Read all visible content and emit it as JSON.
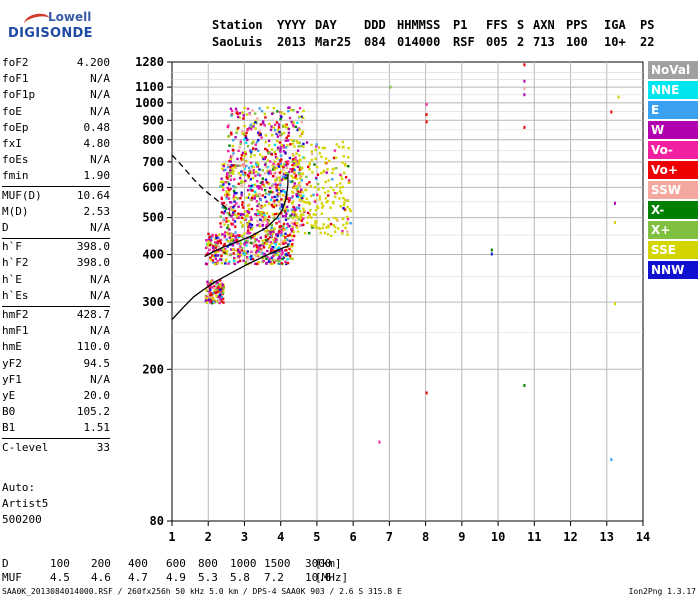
{
  "logo": {
    "line1": "Lowell",
    "line2": "DIGISONDE"
  },
  "header": {
    "row1": [
      {
        "key": "h_station",
        "text": "Station"
      },
      {
        "key": "h_yyyy",
        "text": "YYYY"
      },
      {
        "key": "h_day",
        "text": "DAY"
      },
      {
        "key": "h_ddd",
        "text": "DDD"
      },
      {
        "key": "h_hhmmss",
        "text": "HHMMSS"
      },
      {
        "key": "h_p1",
        "text": "P1"
      },
      {
        "key": "h_ffs",
        "text": "FFS"
      },
      {
        "key": "h_s",
        "text": "S"
      },
      {
        "key": "h_axn",
        "text": "AXN"
      },
      {
        "key": "h_pps",
        "text": "PPS"
      },
      {
        "key": "h_iga",
        "text": "IGA"
      },
      {
        "key": "h_ps",
        "text": "PS"
      }
    ],
    "row2": [
      {
        "key": "v_station",
        "text": "SaoLuis"
      },
      {
        "key": "v_yyyy",
        "text": "2013"
      },
      {
        "key": "v_day",
        "text": "Mar25"
      },
      {
        "key": "v_ddd",
        "text": "084"
      },
      {
        "key": "v_hhmmss",
        "text": "014000"
      },
      {
        "key": "v_p1",
        "text": "RSF"
      },
      {
        "key": "v_ffs",
        "text": "005"
      },
      {
        "key": "v_s",
        "text": "2"
      },
      {
        "key": "v_axn",
        "text": "713"
      },
      {
        "key": "v_pps",
        "text": "100"
      },
      {
        "key": "v_iga",
        "text": "10+"
      },
      {
        "key": "v_ps",
        "text": "22"
      }
    ]
  },
  "parameters": [
    {
      "name": "foF2",
      "value": "4.200"
    },
    {
      "name": "foF1",
      "value": "N/A"
    },
    {
      "name": "foF1p",
      "value": "N/A"
    },
    {
      "name": "foE",
      "value": "N/A"
    },
    {
      "name": "foEp",
      "value": "0.48"
    },
    {
      "name": "fxI",
      "value": "4.80"
    },
    {
      "name": "foEs",
      "value": "N/A"
    },
    {
      "name": "fmin",
      "value": "1.90"
    },
    {
      "name": "MUF(D)",
      "value": "10.64"
    },
    {
      "name": "M(D)",
      "value": "2.53"
    },
    {
      "name": "D",
      "value": "N/A"
    },
    {
      "name": "h`F",
      "value": "398.0"
    },
    {
      "name": "h`F2",
      "value": "398.0"
    },
    {
      "name": "h`E",
      "value": "N/A"
    },
    {
      "name": "h`Es",
      "value": "N/A"
    },
    {
      "name": "hmF2",
      "value": "428.7"
    },
    {
      "name": "hmF1",
      "value": "N/A"
    },
    {
      "name": "hmE",
      "value": "110.0"
    },
    {
      "name": "yF2",
      "value": "94.5"
    },
    {
      "name": "yF1",
      "value": "N/A"
    },
    {
      "name": "yE",
      "value": "20.0"
    },
    {
      "name": "B0",
      "value": "105.2"
    },
    {
      "name": "B1",
      "value": "1.51"
    },
    {
      "name": "C-level",
      "value": "33"
    }
  ],
  "auto": {
    "line1": "Auto:",
    "line2": "Artist5",
    "line3": "500200"
  },
  "bottom_table": {
    "row1_label": "D",
    "row1_values": [
      "100",
      "200",
      "400",
      "600",
      "800",
      "1000",
      "1500",
      "3000"
    ],
    "row1_unit": "[km]",
    "row2_label": "MUF",
    "row2_values": [
      "4.5",
      "4.6",
      "4.7",
      "4.9",
      "5.3",
      "5.8",
      "7.2",
      "10.6"
    ],
    "row2_unit": "[MHz]"
  },
  "footer": {
    "left": "SAA0K_2013084014000.RSF / 260fx256h 50 kHz 5.0 km / DPS-4 SAA0K 903 / 2.6 S 315.8 E",
    "right": "Ion2Png 1.3.17"
  },
  "legend": [
    {
      "label": "NoVal",
      "color": "#a0a0a0"
    },
    {
      "label": "NNE",
      "color": "#00e5ee"
    },
    {
      "label": "E",
      "color": "#3aa0f0"
    },
    {
      "label": "W",
      "color": "#b000b0"
    },
    {
      "label": "Vo-",
      "color": "#f020a0"
    },
    {
      "label": "Vo+",
      "color": "#ee0000"
    },
    {
      "label": "SSW",
      "color": "#f4a8a0"
    },
    {
      "label": "X-",
      "color": "#008000"
    },
    {
      "label": "X+",
      "color": "#80c040"
    },
    {
      "label": "SSE",
      "color": "#d4d400"
    },
    {
      "label": "NNW",
      "color": "#1010d0"
    }
  ],
  "chart_data": {
    "type": "scatter",
    "x_range": [
      1,
      14
    ],
    "x_ticks": [
      1,
      2,
      3,
      4,
      5,
      6,
      7,
      8,
      9,
      10,
      11,
      12,
      13,
      14
    ],
    "y_scale": "log",
    "y_range": [
      80,
      1280
    ],
    "y_ticks": [
      80,
      200,
      300,
      400,
      500,
      600,
      700,
      800,
      900,
      1000,
      1100,
      1280
    ],
    "grid": true,
    "traces": [
      {
        "name": "ordinary trace",
        "style": "solid",
        "x": [
          1.0,
          1.3,
          1.6,
          1.9,
          2.2,
          2.5,
          2.8,
          3.1,
          3.4,
          3.7,
          3.9,
          4.1,
          4.2,
          4.2
        ],
        "y": [
          270,
          290,
          310,
          325,
          340,
          352,
          365,
          378,
          390,
          402,
          410,
          418,
          420,
          428
        ]
      },
      {
        "name": "profile",
        "style": "solid",
        "x": [
          1.9,
          2.1,
          2.4,
          2.8,
          3.2,
          3.6,
          3.9,
          4.05,
          4.15,
          4.2,
          4.2
        ],
        "y": [
          395,
          405,
          418,
          432,
          448,
          470,
          500,
          525,
          560,
          610,
          650
        ]
      },
      {
        "name": "extrapolation",
        "style": "dashed",
        "x": [
          1.0,
          1.3,
          1.6,
          1.9,
          2.2,
          2.4,
          2.6
        ],
        "y": [
          730,
          680,
          630,
          590,
          560,
          540,
          520
        ]
      }
    ],
    "scatter_clusters": [
      {
        "x_min": 1.9,
        "x_max": 2.4,
        "y_min": 300,
        "y_max": 345,
        "n": 140
      },
      {
        "x_min": 1.9,
        "x_max": 4.3,
        "y_min": 380,
        "y_max": 460,
        "n": 420
      },
      {
        "x_min": 2.3,
        "x_max": 4.6,
        "y_min": 460,
        "y_max": 700,
        "n": 600
      },
      {
        "x_min": 2.5,
        "x_max": 4.6,
        "y_min": 700,
        "y_max": 980,
        "n": 260
      },
      {
        "x_min": 4.3,
        "x_max": 5.9,
        "y_min": 450,
        "y_max": 800,
        "n": 220
      }
    ],
    "isolated_points": [
      {
        "x": 6.7,
        "y": 130
      },
      {
        "x": 7.0,
        "y": 1110
      },
      {
        "x": 8.0,
        "y": 900
      },
      {
        "x": 8.0,
        "y": 940
      },
      {
        "x": 8.0,
        "y": 1000
      },
      {
        "x": 8.0,
        "y": 175
      },
      {
        "x": 9.8,
        "y": 405
      },
      {
        "x": 9.8,
        "y": 415
      },
      {
        "x": 10.7,
        "y": 1060
      },
      {
        "x": 10.7,
        "y": 1100
      },
      {
        "x": 10.7,
        "y": 1150
      },
      {
        "x": 10.7,
        "y": 1270
      },
      {
        "x": 10.7,
        "y": 870
      },
      {
        "x": 10.7,
        "y": 183
      },
      {
        "x": 13.1,
        "y": 955
      },
      {
        "x": 13.2,
        "y": 550
      },
      {
        "x": 13.2,
        "y": 490
      },
      {
        "x": 13.2,
        "y": 300
      },
      {
        "x": 13.3,
        "y": 1045
      },
      {
        "x": 13.1,
        "y": 117
      }
    ]
  }
}
